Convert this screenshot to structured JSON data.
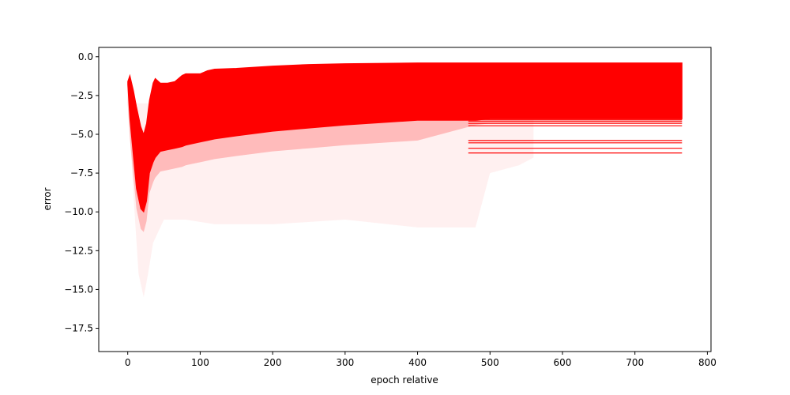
{
  "chart_data": {
    "type": "area",
    "title": "",
    "xlabel": "epoch relative",
    "ylabel": "error",
    "xlim": [
      -40,
      805
    ],
    "ylim": [
      -19.0,
      0.6
    ],
    "xticks": [
      0,
      100,
      200,
      300,
      400,
      500,
      600,
      700,
      800
    ],
    "yticks": [
      0.0,
      -2.5,
      -5.0,
      -7.5,
      -10.0,
      -12.5,
      -15.0,
      -17.5
    ],
    "xtick_labels": [
      "0",
      "100",
      "200",
      "300",
      "400",
      "500",
      "600",
      "700",
      "800"
    ],
    "ytick_labels": [
      "0.0",
      "−2.5",
      "−5.0",
      "−7.5",
      "−10.0",
      "−12.5",
      "−15.0",
      "−17.5"
    ],
    "grid": false,
    "color": "#ff0000",
    "dense_band": {
      "x": [
        0,
        3,
        8,
        12,
        18,
        22,
        26,
        30,
        35,
        38,
        45,
        55,
        65,
        75,
        80,
        90,
        100,
        110,
        120,
        150,
        200,
        250,
        300,
        400,
        480,
        500,
        560,
        765
      ],
      "upper": [
        -1.6,
        -1.2,
        -2.2,
        -3.2,
        -4.5,
        -5.0,
        -4.3,
        -2.8,
        -1.7,
        -1.4,
        -1.7,
        -1.7,
        -1.6,
        -1.2,
        -1.1,
        -1.1,
        -1.1,
        -0.9,
        -0.8,
        -0.75,
        -0.6,
        -0.5,
        -0.45,
        -0.4,
        -0.4,
        -0.4,
        -0.4,
        -0.4
      ],
      "lower": [
        -1.8,
        -4.0,
        -6.5,
        -8.5,
        -9.8,
        -10.0,
        -9.3,
        -7.5,
        -6.8,
        -6.5,
        -6.1,
        -6.0,
        -5.9,
        -5.8,
        -5.7,
        -5.6,
        -5.5,
        -5.4,
        -5.3,
        -5.1,
        -4.8,
        -4.6,
        -4.4,
        -4.1,
        -4.1,
        -4.0,
        -4.0,
        -4.0
      ]
    },
    "sparse_tail": {
      "x": [
        0,
        8,
        15,
        22,
        28,
        35,
        50,
        80,
        120,
        200,
        300,
        400,
        480,
        500,
        540,
        560
      ],
      "lower": [
        -2.5,
        -9.0,
        -14.0,
        -15.5,
        -14.0,
        -12.0,
        -10.5,
        -10.5,
        -10.8,
        -10.8,
        -10.5,
        -11.0,
        -11.0,
        -7.5,
        -7.0,
        -6.5
      ]
    },
    "plateau_lines": {
      "x_start": 470,
      "x_end": 765,
      "values": [
        -3.9,
        -4.05,
        -4.15,
        -4.3,
        -4.45,
        -5.4,
        -5.55,
        -5.9,
        -6.2
      ]
    }
  }
}
